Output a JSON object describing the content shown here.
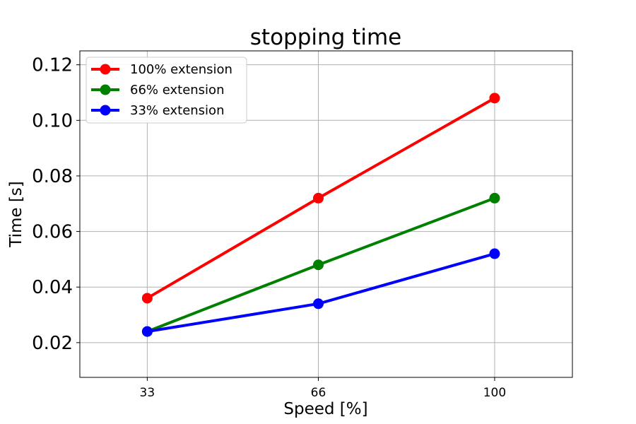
{
  "chart_data": {
    "type": "line",
    "title": "stopping time",
    "xlabel": "Speed [%]",
    "ylabel": "Time [s]",
    "x": [
      33,
      66,
      100
    ],
    "x_tick_labels": [
      "33",
      "66",
      "100"
    ],
    "xlim": [
      20,
      115
    ],
    "ylim": [
      0.0075,
      0.125
    ],
    "y_ticks": [
      0.02,
      0.04,
      0.06,
      0.08,
      0.1,
      0.12
    ],
    "y_tick_labels": [
      "0.02",
      "0.04",
      "0.06",
      "0.08",
      "0.10",
      "0.12"
    ],
    "grid": true,
    "legend_position": "upper-left",
    "series": [
      {
        "name": "100% extension",
        "color": "#ff0000",
        "values": [
          0.036,
          0.072,
          0.108
        ]
      },
      {
        "name": "66% extension",
        "color": "#008000",
        "values": [
          0.024,
          0.048,
          0.072
        ]
      },
      {
        "name": "33% extension",
        "color": "#0000ff",
        "values": [
          0.024,
          0.034,
          0.052
        ]
      }
    ]
  }
}
